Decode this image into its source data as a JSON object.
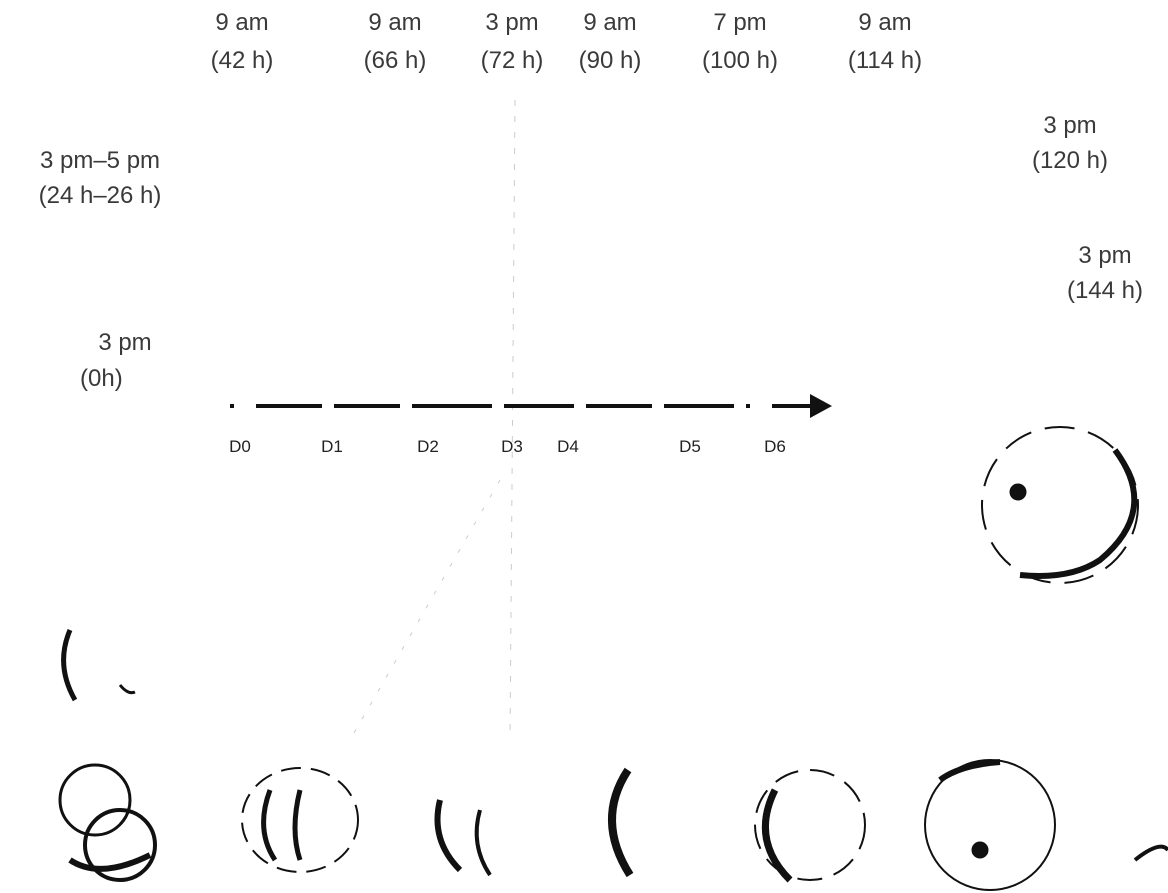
{
  "time_labels": [
    {
      "time": "9 am",
      "hours": "(42 h)"
    },
    {
      "time": "9 am",
      "hours": "(66 h)"
    },
    {
      "time": "3 pm",
      "hours": "(72 h)"
    },
    {
      "time": "9 am",
      "hours": "(90 h)"
    },
    {
      "time": "7 pm",
      "hours": "(100 h)"
    },
    {
      "time": "9 am",
      "hours": "(114 h)"
    },
    {
      "time": "3 pm",
      "hours": "(120 h)"
    },
    {
      "time": "3 pm",
      "hours": "(144 h)"
    },
    {
      "time": "3 pm–5 pm",
      "hours": "(24 h–26 h)"
    },
    {
      "time": "3 pm",
      "hours": "(0h)"
    }
  ],
  "day_labels": [
    "D0",
    "D1",
    "D2",
    "D3",
    "D4",
    "D5",
    "D6"
  ]
}
